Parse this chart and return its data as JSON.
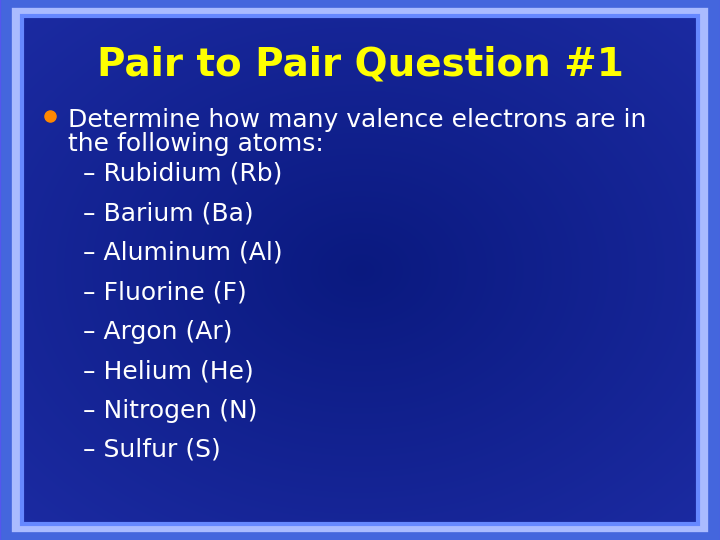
{
  "title": "Pair to Pair Question #1",
  "title_color": "#FFFF00",
  "title_fontsize": 28,
  "title_fontweight": "bold",
  "background_color": "#0A1A8B",
  "outer_border_color1": "#6666FF",
  "outer_border_color2": "#4444CC",
  "inner_border_color": "#AAAAFF",
  "bullet_color": "#FF8800",
  "bullet_text_color": "#FFFFFF",
  "bullet_fontsize": 18,
  "bullet_text_line1": "Determine how many valence electrons are in",
  "bullet_text_line2": "the following atoms:",
  "sub_items": [
    "– Rubidium (Rb)",
    "– Barium (Ba)",
    "– Aluminum (Al)",
    "– Fluorine (F)",
    "– Argon (Ar)",
    "– Helium (He)",
    "– Nitrogen (N)",
    "– Sulfur (S)"
  ],
  "sub_item_color": "#FFFFFF",
  "sub_item_fontsize": 18,
  "fig_width": 7.2,
  "fig_height": 5.4,
  "dpi": 100
}
